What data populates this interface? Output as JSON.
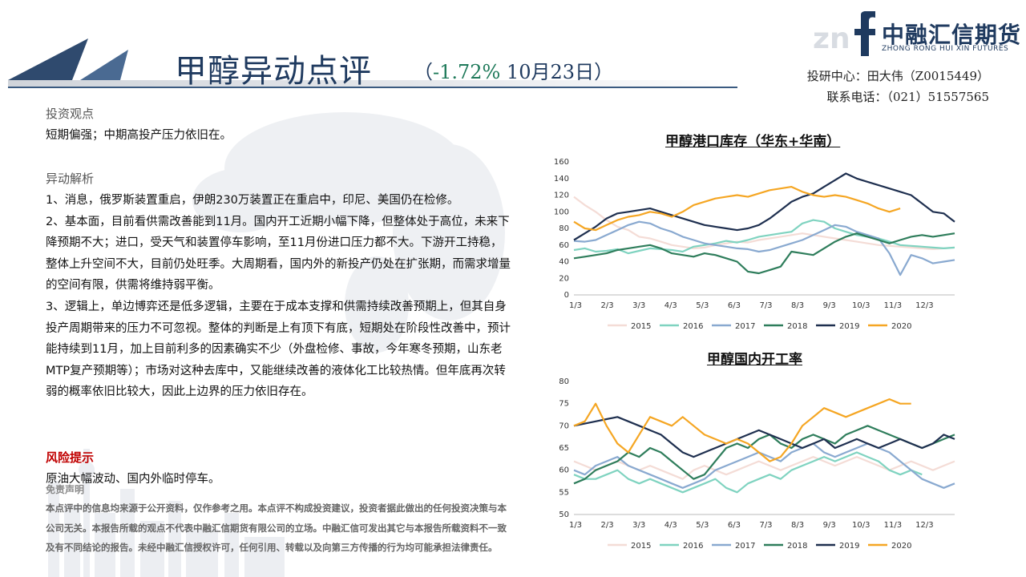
{
  "header": {
    "title": "甲醇异动点评",
    "change_open": "（",
    "change_pct": "-1.72%",
    "change_date": " 10月23日）"
  },
  "logo": {
    "name_cn": "中融汇信期货",
    "name_en": "ZHONG RONG HUI XIN FUTURES"
  },
  "contact": {
    "analyst": "投研中心：田大伟（Z0015449）",
    "phone": "联系电话：（021）51557565"
  },
  "viewpoint": {
    "heading": "投资观点",
    "text": "短期偏强；中期高投产压力依旧在。"
  },
  "analysis": {
    "heading": "异动解析",
    "paragraphs": [
      "1、消息，俄罗斯装置重启，伊朗230万装置正在重启中，印尼、美国仍在检修。",
      "2、基本面，目前看供需改善能到11月。国内开工近期小幅下降，但整体处于高位，未来下降预期不大；进口，受天气和装置停车影响，至11月份进口压力都不大。下游开工持稳，整体上升空间不大，目前仍处旺季。大周期看，国内外的新投产仍处在扩张期，而需求增量的空间有限，供需将维持弱平衡。",
      "3、逻辑上，单边博弈还是低多逻辑，主要在于成本支撑和供需持续改善预期上，但其自身投产周期带来的压力不可忽视。整体的判断是上有顶下有底，短期处在阶段性改善中，预计能持续到11月，加上目前利多的因素确实不少（外盘检修、事故，今年寒冬预期，山东老MTP复产预期等）；市场对这种去库中，又能继续改善的液体化工比较热情。但年底再次转弱的概率依旧比较大，因此上边界的压力依旧存在。"
    ]
  },
  "risk": {
    "heading": "风险提示",
    "text": "原油大幅波动、国内外临时停车。"
  },
  "disclaimer": {
    "heading": "免责声明",
    "text": "本点评中的信息均来源于公开资料，仅作参考之用。本点评不构成投资建议，投资者据此做出的任何投资决策与本公司无关。本报告所载的观点不代表中融汇信期货有限公司的立场。中融汇信可发出其它与本报告所载资料不一致及有不同结论的报告。未经中融汇信授权许可，任何引用、转载以及向第三方传播的行为均可能承担法律责任。"
  },
  "colors": {
    "2015": "#f4dcd6",
    "2016": "#7fd3c0",
    "2017": "#89a9d0",
    "2018": "#2e7d5b",
    "2019": "#1e2f4f",
    "2020": "#f5a623"
  },
  "chart_data": [
    {
      "type": "line",
      "title": "甲醇港口库存（华东+华南）",
      "x_ticks": [
        "1/3",
        "2/3",
        "3/3",
        "4/3",
        "5/3",
        "6/3",
        "7/3",
        "8/3",
        "9/3",
        "10/3",
        "11/3",
        "12/3"
      ],
      "ylim": [
        0,
        160
      ],
      "y_ticks": [
        0,
        20,
        40,
        60,
        80,
        100,
        120,
        140,
        160
      ],
      "legend_position": "bottom",
      "series": [
        {
          "name": "2015",
          "values": [
            118,
            108,
            100,
            90,
            82,
            78,
            70,
            68,
            64,
            60,
            58,
            56,
            57,
            60,
            62,
            64,
            63,
            66,
            68,
            70,
            72,
            74,
            72,
            70,
            68,
            66,
            64,
            62,
            60,
            59,
            58,
            57,
            56,
            55,
            56,
            57
          ]
        },
        {
          "name": "2016",
          "values": [
            54,
            56,
            52,
            53,
            55,
            50,
            53,
            56,
            55,
            54,
            52,
            58,
            60,
            62,
            65,
            63,
            66,
            70,
            72,
            74,
            76,
            86,
            90,
            88,
            80,
            76,
            72,
            70,
            68,
            64,
            60,
            59,
            58,
            57,
            56,
            57
          ]
        },
        {
          "name": "2017",
          "values": [
            65,
            64,
            66,
            72,
            78,
            84,
            88,
            86,
            80,
            76,
            70,
            66,
            62,
            60,
            58,
            56,
            55,
            52,
            54,
            58,
            62,
            66,
            72,
            78,
            84,
            82,
            76,
            72,
            68,
            50,
            24,
            48,
            44,
            38,
            40,
            42
          ]
        },
        {
          "name": "2018",
          "values": [
            44,
            46,
            48,
            50,
            54,
            56,
            58,
            60,
            56,
            50,
            48,
            46,
            50,
            48,
            44,
            40,
            28,
            26,
            30,
            34,
            52,
            50,
            48,
            56,
            64,
            70,
            74,
            70,
            66,
            62,
            66,
            70,
            72,
            70,
            72,
            74
          ]
        },
        {
          "name": "2019",
          "values": [
            66,
            74,
            82,
            92,
            98,
            100,
            102,
            104,
            100,
            96,
            92,
            88,
            84,
            82,
            80,
            78,
            80,
            84,
            92,
            102,
            112,
            118,
            122,
            130,
            138,
            146,
            140,
            136,
            132,
            128,
            124,
            120,
            110,
            100,
            98,
            88
          ]
        },
        {
          "name": "2020",
          "values": [
            88,
            80,
            78,
            84,
            90,
            94,
            96,
            100,
            98,
            94,
            100,
            108,
            112,
            116,
            118,
            120,
            118,
            122,
            126,
            128,
            130,
            124,
            120,
            118,
            120,
            118,
            114,
            110,
            104,
            100,
            104
          ]
        }
      ]
    },
    {
      "type": "line",
      "title": "甲醇国内开工率",
      "x_ticks": [
        "1/3",
        "2/3",
        "3/3",
        "4/3",
        "5/3",
        "6/3",
        "7/3",
        "8/3",
        "9/3",
        "10/3",
        "11/3",
        "12/3"
      ],
      "ylim": [
        50,
        80
      ],
      "y_ticks": [
        50,
        55,
        60,
        65,
        70,
        75,
        80
      ],
      "legend_position": "bottom",
      "series": [
        {
          "name": "2015",
          "values": [
            62,
            61,
            60,
            61,
            62,
            61,
            60,
            61,
            60,
            59,
            58,
            60,
            61,
            60,
            59,
            60,
            61,
            62,
            61,
            60,
            61,
            62,
            63,
            62,
            61,
            62,
            63,
            62,
            61,
            60,
            61,
            62,
            61,
            60,
            61,
            62
          ]
        },
        {
          "name": "2016",
          "values": [
            59,
            58,
            58,
            59,
            60,
            58,
            57,
            58,
            57,
            56,
            55,
            56,
            57,
            58,
            56,
            55,
            57,
            58,
            59,
            58,
            60,
            61,
            62,
            63,
            62,
            63,
            64,
            63,
            62,
            60,
            59,
            60,
            59
          ]
        },
        {
          "name": "2017",
          "values": [
            60,
            59,
            61,
            62,
            63,
            61,
            60,
            59,
            58,
            57,
            56,
            57,
            58,
            60,
            61,
            62,
            63,
            64,
            63,
            62,
            64,
            65,
            66,
            64,
            63,
            64,
            65,
            66,
            65,
            64,
            62,
            60,
            58,
            57,
            56,
            57
          ]
        },
        {
          "name": "2018",
          "values": [
            57,
            58,
            60,
            61,
            62,
            64,
            63,
            65,
            64,
            62,
            60,
            58,
            59,
            62,
            65,
            66,
            65,
            67,
            68,
            66,
            65,
            67,
            68,
            67,
            66,
            68,
            69,
            70,
            69,
            68,
            67,
            66,
            65,
            66,
            67,
            68
          ]
        },
        {
          "name": "2019",
          "values": [
            70,
            70.5,
            71,
            71.5,
            72,
            71,
            70,
            69,
            68,
            66,
            64,
            63,
            64,
            65,
            66,
            67,
            68,
            69,
            68,
            67,
            66,
            65,
            66,
            67,
            65,
            66,
            67,
            66,
            65,
            66,
            67,
            66,
            65,
            66,
            68,
            67
          ]
        },
        {
          "name": "2020",
          "values": [
            70,
            71,
            75,
            70,
            66,
            64,
            68,
            72,
            71,
            70,
            72,
            70,
            68,
            67,
            66,
            67,
            66,
            64,
            62,
            63,
            66,
            70,
            72,
            74,
            73,
            72,
            73,
            74,
            75,
            76,
            75,
            75
          ]
        }
      ]
    }
  ]
}
